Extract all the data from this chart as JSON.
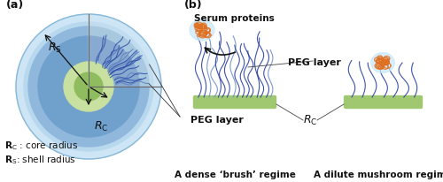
{
  "bg_color": "#ffffff",
  "panel_a_label": "(a)",
  "panel_b_label": "(b)",
  "label_rc_a": "$\\itR$$_\\mathrm{C}$",
  "label_rs_a": "$\\itR$$_\\mathrm{S}$",
  "text_rc_def": "$\\bfR$$_\\bf{C}$ : core radius",
  "text_rs_def": "$\\bfR$$_\\bf{S}$: shell radius",
  "text_peg_a": "PEG layer",
  "text_serum": "Serum proteins",
  "text_peg_b": "PEG layer",
  "text_rc_b": "$\\itR$$_\\mathrm{C}$",
  "text_brush": "A dense ‘brush’ regime",
  "text_mushroom": "A dilute mushroom regime",
  "sphere_outer_color": "#cde5f5",
  "sphere_mid_color": "#b0d0ea",
  "sphere_inner_color": "#7aadd8",
  "sphere_deepinner_color": "#5090c8",
  "core_color": "#c8e0a0",
  "core_dark": "#90bc60",
  "peg_chain_color_light": "#8099cc",
  "peg_chain_color_dark": "#2040a0",
  "surface_color": "#a0c870",
  "protein_color": "#e07020",
  "glow_color": "#c8e8f8",
  "arrow_color": "#111111",
  "text_color": "#111111",
  "figsize": [
    5.0,
    2.06
  ],
  "dpi": 100
}
